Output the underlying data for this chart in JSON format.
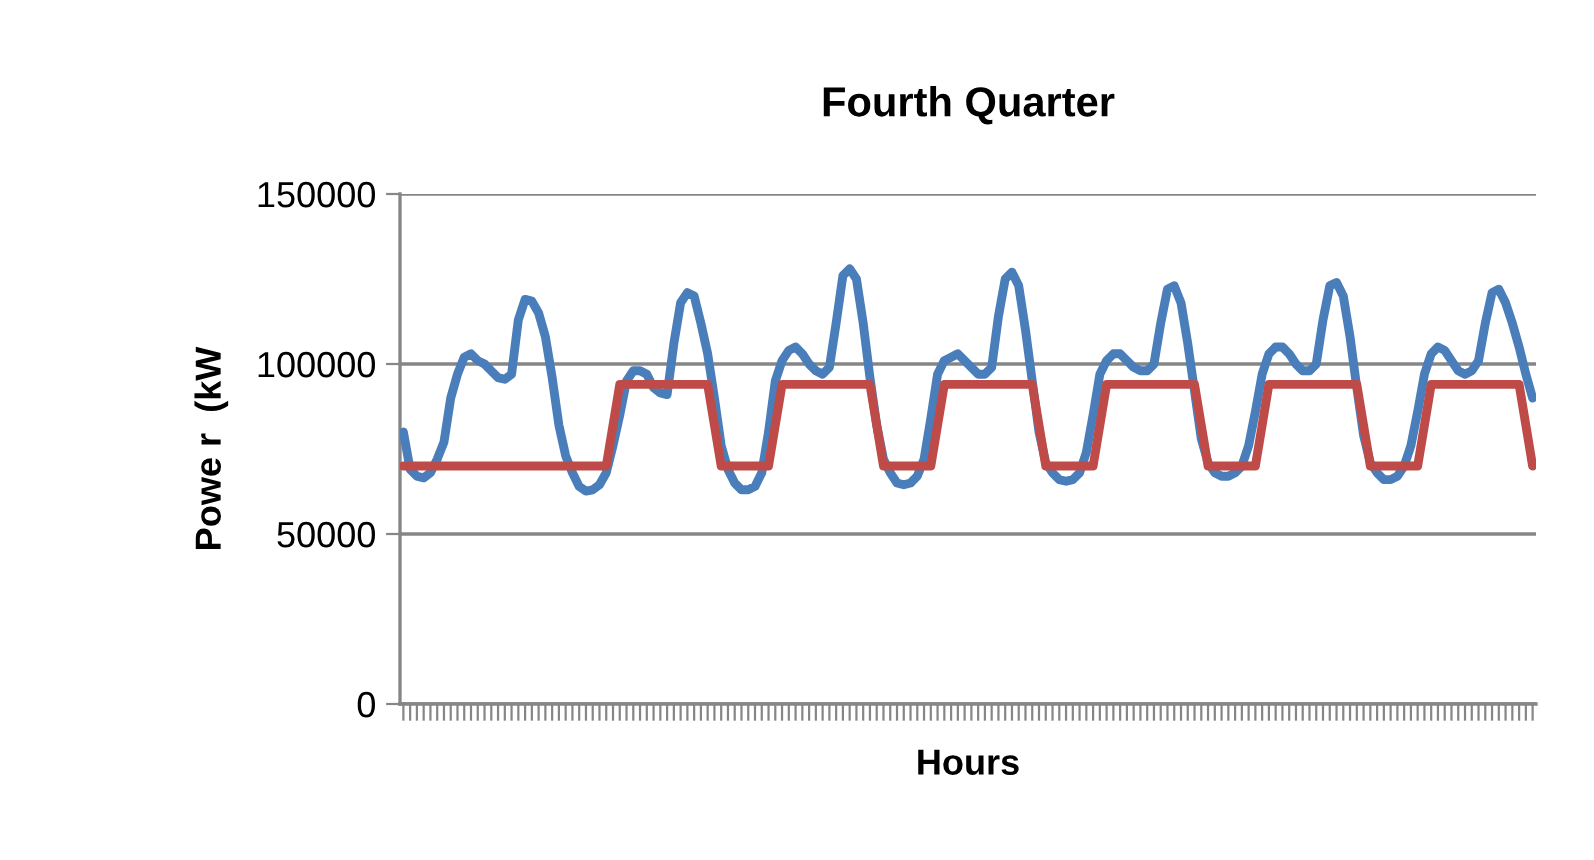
{
  "chart_data": {
    "type": "line",
    "title": "Fourth Quarter",
    "xlabel": "Hours",
    "ylabel": "Powe r  (kW",
    "categories": [
      null,
      null,
      null,
      null,
      null,
      null,
      null,
      null,
      null,
      null,
      null,
      null,
      null,
      null,
      null,
      null,
      null,
      null,
      null,
      null,
      null,
      null,
      null,
      null,
      null,
      null,
      null,
      null,
      null,
      null,
      null,
      null,
      null,
      null,
      null,
      null,
      null,
      null,
      null,
      null,
      null,
      null,
      null,
      null,
      null,
      null,
      null,
      null,
      null,
      null,
      null,
      null,
      null,
      null,
      null,
      null,
      null,
      null,
      null,
      null,
      null,
      null,
      null,
      null,
      null,
      null,
      null,
      null,
      null,
      null,
      null,
      null,
      null,
      null,
      null,
      null,
      null,
      null,
      null,
      null,
      null,
      null,
      null,
      null,
      null,
      null,
      null,
      null,
      null,
      null,
      null,
      null,
      null,
      null,
      null,
      null,
      null,
      null,
      null,
      null,
      null,
      null,
      null,
      null,
      null,
      null,
      null,
      null,
      null,
      null,
      null,
      null,
      null,
      null,
      null,
      null,
      null,
      null,
      null,
      null,
      null,
      null,
      null,
      null,
      null,
      null,
      null,
      null,
      null,
      null,
      null,
      null,
      null,
      null,
      null,
      null,
      null,
      null,
      null,
      null,
      null,
      null,
      null,
      null,
      null,
      null,
      null,
      null,
      null,
      null,
      null,
      null,
      null,
      null,
      null,
      null,
      null,
      null,
      null,
      null,
      null,
      null,
      null,
      null,
      null,
      null,
      null,
      null
    ],
    "series": [
      {
        "color": "#4a7ebb",
        "values": [
          80000,
          69000,
          67000,
          66500,
          68000,
          72000,
          77000,
          90000,
          97000,
          102000,
          103000,
          101000,
          100000,
          98000,
          96000,
          95500,
          97000,
          113000,
          119000,
          118500,
          115000,
          108000,
          96000,
          82000,
          73000,
          68000,
          64000,
          62600,
          63000,
          64500,
          68000,
          76000,
          85000,
          95000,
          98000,
          98000,
          97000,
          93000,
          91500,
          91000,
          106000,
          118000,
          121000,
          120000,
          112000,
          103000,
          90000,
          76000,
          69000,
          65000,
          63000,
          63000,
          64000,
          68000,
          80000,
          95000,
          101000,
          104000,
          105000,
          103000,
          100000,
          98000,
          97000,
          99000,
          112000,
          126000,
          128000,
          125000,
          112000,
          96000,
          82000,
          72000,
          68000,
          65000,
          64500,
          65000,
          67000,
          72000,
          84000,
          97000,
          101000,
          102000,
          103000,
          101000,
          99000,
          97000,
          97000,
          99000,
          114000,
          125000,
          127000,
          123000,
          110000,
          95000,
          80000,
          71000,
          68000,
          66000,
          65500,
          66000,
          68000,
          74000,
          85000,
          97000,
          101000,
          103000,
          103000,
          101000,
          99000,
          98000,
          98000,
          100000,
          112000,
          122000,
          123000,
          118000,
          106000,
          92000,
          78000,
          71000,
          68000,
          67000,
          67000,
          68000,
          70000,
          76000,
          86000,
          97000,
          103000,
          105000,
          105000,
          103000,
          100000,
          98000,
          98000,
          100000,
          113000,
          123000,
          124000,
          120000,
          108000,
          93000,
          79000,
          71000,
          68000,
          66000,
          66000,
          67000,
          70000,
          76000,
          86000,
          97000,
          103000,
          105000,
          104000,
          101000,
          98000,
          97000,
          98000,
          101000,
          112000,
          121000,
          122000,
          118000,
          112000,
          105000,
          97000,
          90000
        ]
      },
      {
        "color": "#be4b48",
        "values": [
          70000,
          70000,
          70000,
          70000,
          70000,
          70000,
          70000,
          70000,
          70000,
          70000,
          70000,
          70000,
          70000,
          70000,
          70000,
          70000,
          70000,
          70000,
          70000,
          70000,
          70000,
          70000,
          70000,
          70000,
          70000,
          70000,
          70000,
          70000,
          70000,
          70000,
          70000,
          82000,
          94000,
          94000,
          94000,
          94000,
          94000,
          94000,
          94000,
          94000,
          94000,
          94000,
          94000,
          94000,
          94000,
          94000,
          82000,
          70000,
          70000,
          70000,
          70000,
          70000,
          70000,
          70000,
          70000,
          82000,
          94000,
          94000,
          94000,
          94000,
          94000,
          94000,
          94000,
          94000,
          94000,
          94000,
          94000,
          94000,
          94000,
          94000,
          82000,
          70000,
          70000,
          70000,
          70000,
          70000,
          70000,
          70000,
          70000,
          82000,
          94000,
          94000,
          94000,
          94000,
          94000,
          94000,
          94000,
          94000,
          94000,
          94000,
          94000,
          94000,
          94000,
          94000,
          82000,
          70000,
          70000,
          70000,
          70000,
          70000,
          70000,
          70000,
          70000,
          82000,
          94000,
          94000,
          94000,
          94000,
          94000,
          94000,
          94000,
          94000,
          94000,
          94000,
          94000,
          94000,
          94000,
          94000,
          82000,
          70000,
          70000,
          70000,
          70000,
          70000,
          70000,
          70000,
          70000,
          82000,
          94000,
          94000,
          94000,
          94000,
          94000,
          94000,
          94000,
          94000,
          94000,
          94000,
          94000,
          94000,
          94000,
          94000,
          82000,
          70000,
          70000,
          70000,
          70000,
          70000,
          70000,
          70000,
          70000,
          82000,
          94000,
          94000,
          94000,
          94000,
          94000,
          94000,
          94000,
          94000,
          94000,
          94000,
          94000,
          94000,
          94000,
          94000,
          82000,
          70000
        ]
      }
    ],
    "ylim": [
      0,
      150000
    ],
    "yticks": [
      0,
      50000,
      100000,
      150000
    ],
    "grid": "y",
    "tick_labels": "y",
    "marker": "none",
    "line_style": "solid"
  }
}
